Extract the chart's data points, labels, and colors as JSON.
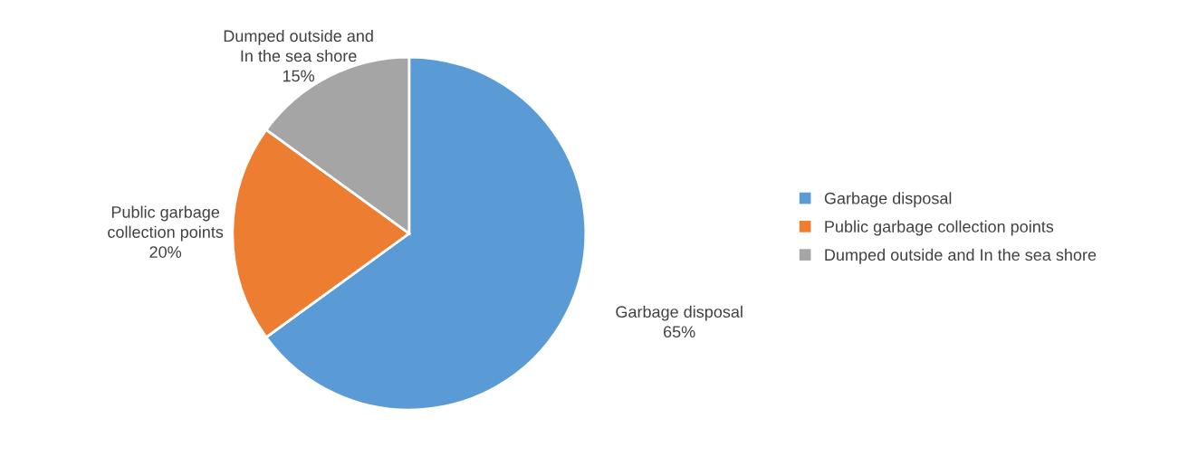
{
  "chart_data": {
    "type": "pie",
    "categories": [
      "Garbage disposal",
      "Public garbage collection points",
      "Dumped outside and In the sea shore"
    ],
    "values": [
      65,
      20,
      15
    ],
    "colors": [
      "#5b9bd5",
      "#ed7d31",
      "#a5a5a5"
    ],
    "value_labels": [
      "65%",
      "20%",
      "15%"
    ],
    "legend": "right"
  }
}
